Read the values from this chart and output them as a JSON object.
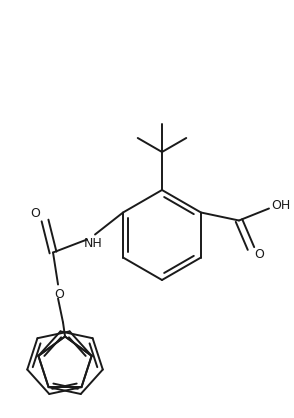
{
  "bg_color": "#ffffff",
  "line_color": "#1a1a1a",
  "lw": 1.4,
  "figsize": [
    2.94,
    4.18
  ],
  "dpi": 100,
  "xlim": [
    0,
    294
  ],
  "ylim": [
    0,
    418
  ]
}
